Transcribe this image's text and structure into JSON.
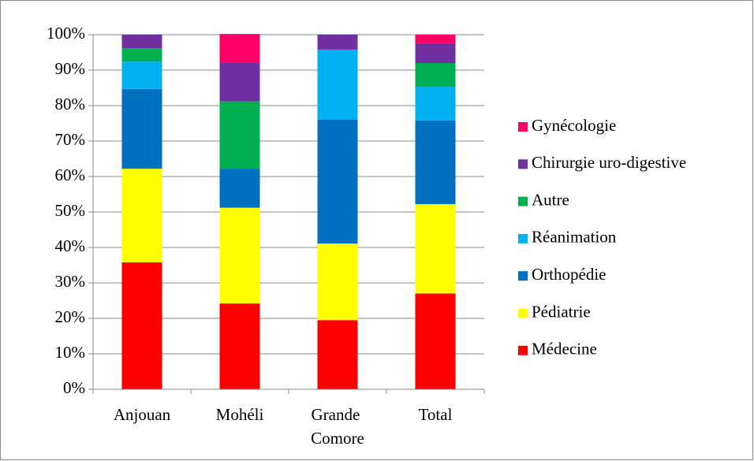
{
  "chart_data": {
    "type": "stacked_bar",
    "categories": [
      "Anjouan",
      "Mohéli",
      "Grande Comore",
      "Total"
    ],
    "series": [
      {
        "name": "Médecine",
        "color": "#ff0000",
        "values": [
          35.8,
          24.2,
          19.5,
          27
        ]
      },
      {
        "name": "Pédiatrie",
        "color": "#ffff00",
        "values": [
          26.4,
          27,
          21.6,
          25.2
        ]
      },
      {
        "name": "Orthopédie",
        "color": "#0070c0",
        "values": [
          22.5,
          11,
          34.9,
          23.6
        ]
      },
      {
        "name": "Réanimation",
        "color": "#00b0f0",
        "values": [
          7.7,
          0,
          19.8,
          9.5
        ]
      },
      {
        "name": "Autre",
        "color": "#00b050",
        "values": [
          3.8,
          19,
          0,
          6.7
        ]
      },
      {
        "name": "Chirurgie uro-digestive",
        "color": "#7030a0",
        "values": [
          3.8,
          11,
          4.2,
          5.6
        ]
      },
      {
        "name": "Gynécologie",
        "color": "#ff0066",
        "values": [
          0,
          8,
          0,
          2.4
        ]
      }
    ],
    "ylim": [
      0,
      100
    ],
    "yticks": [
      {
        "value": 0,
        "label": "0%"
      },
      {
        "value": 10,
        "label": "10%"
      },
      {
        "value": 20,
        "label": "20%"
      },
      {
        "value": 30,
        "label": "30%"
      },
      {
        "value": 40,
        "label": "40%"
      },
      {
        "value": 50,
        "label": "50%"
      },
      {
        "value": 60,
        "label": "60%"
      },
      {
        "value": 70,
        "label": "70%"
      },
      {
        "value": 80,
        "label": "80%"
      },
      {
        "value": 90,
        "label": "90%"
      },
      {
        "value": 100,
        "label": "100%"
      }
    ],
    "grid": true,
    "legend": "right"
  }
}
